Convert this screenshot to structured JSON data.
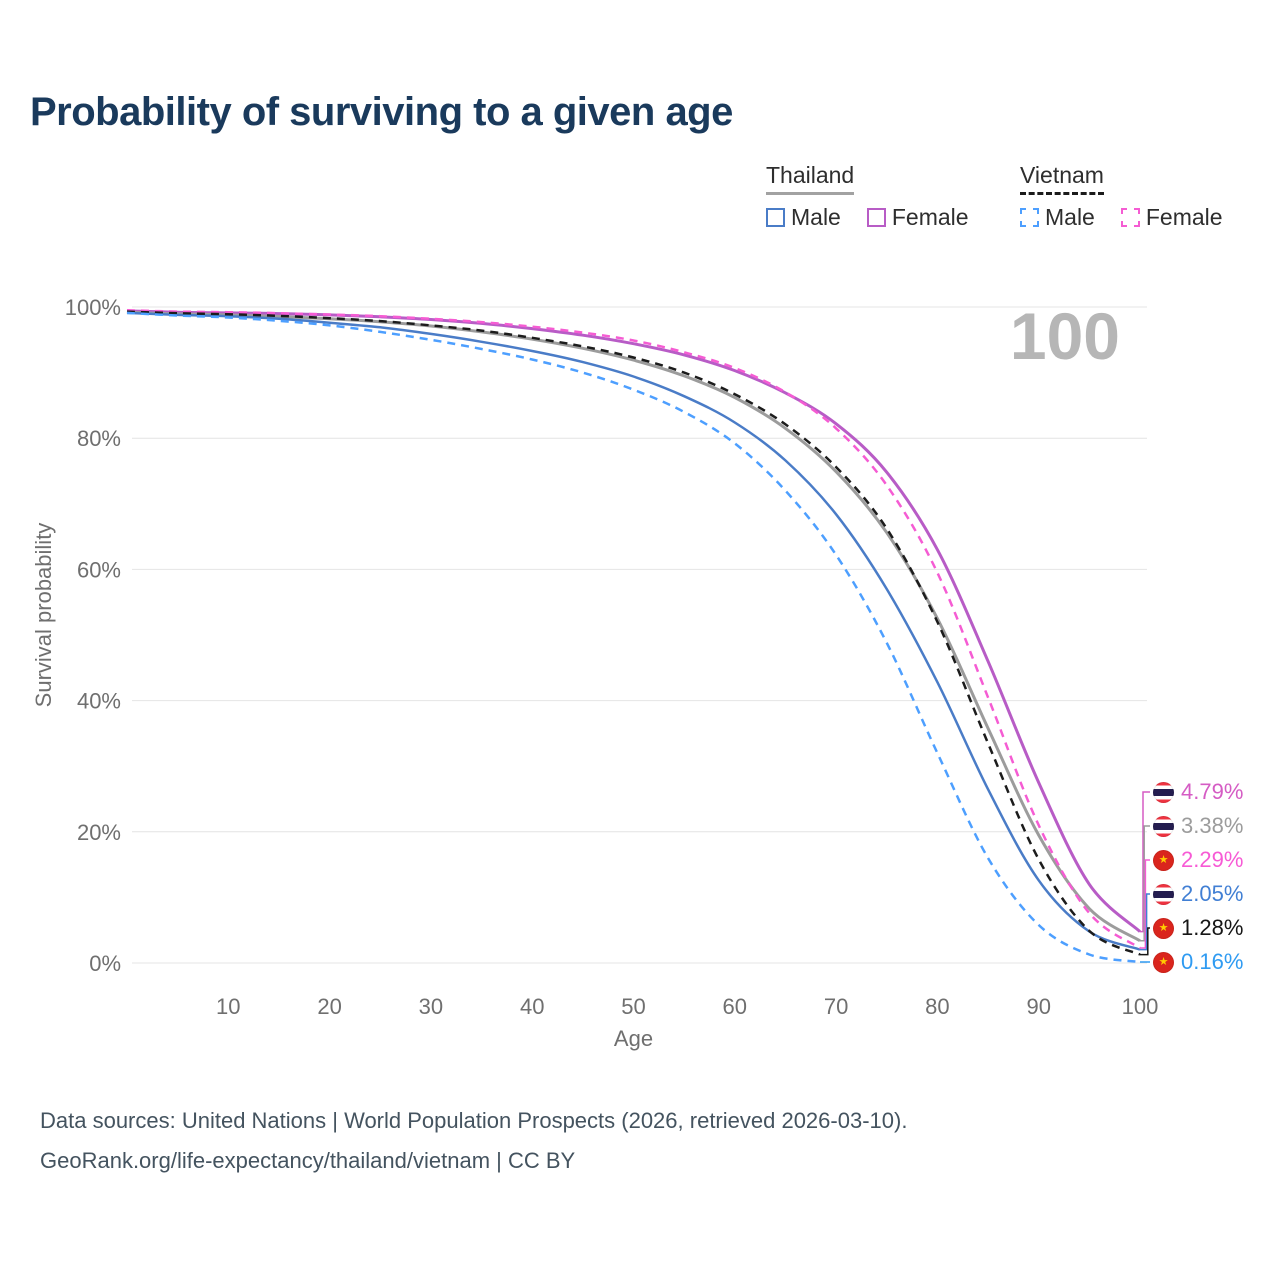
{
  "page": {
    "title": "Probability of surviving to a given age",
    "footer_line1": "Data sources: United Nations | World Population Prospects (2026, retrieved 2026-03-10).",
    "footer_line2": "GeoRank.org/life-expectancy/thailand/vietnam | CC BY"
  },
  "legend": {
    "groups": [
      {
        "label": "Thailand",
        "style": "solid",
        "rule_color": "#a2a2a2",
        "items": [
          {
            "label": "Male",
            "color": "#4a7cc7",
            "dashed": false
          },
          {
            "label": "Female",
            "color": "#b85cc6",
            "dashed": false
          }
        ]
      },
      {
        "label": "Vietnam",
        "style": "dashed",
        "rule_color": "#1b1b1b",
        "items": [
          {
            "label": "Male",
            "color": "#4d9fff",
            "dashed": true
          },
          {
            "label": "Female",
            "color": "#f55cd3",
            "dashed": true
          }
        ]
      }
    ]
  },
  "icons": {
    "thailand_flag": {
      "red": "#ef3340",
      "white": "#ffffff",
      "blue": "#241d4f"
    },
    "vietnam_flag": {
      "bg": "#da251d",
      "star_color": "#ffcd00",
      "glyph": "★"
    }
  },
  "chart_data": {
    "type": "line",
    "title": "Probability of surviving to a given age",
    "xlabel": "Age",
    "ylabel": "Survival probability",
    "xlim": [
      0,
      100
    ],
    "ylim": [
      0,
      100
    ],
    "grid": "horizontal",
    "hover_age_label": "100",
    "xticks": [
      {
        "v": 10,
        "label": "10"
      },
      {
        "v": 20,
        "label": "20"
      },
      {
        "v": 30,
        "label": "30"
      },
      {
        "v": 40,
        "label": "40"
      },
      {
        "v": 50,
        "label": "50"
      },
      {
        "v": 60,
        "label": "60"
      },
      {
        "v": 70,
        "label": "70"
      },
      {
        "v": 80,
        "label": "80"
      },
      {
        "v": 90,
        "label": "90"
      },
      {
        "v": 100,
        "label": "100"
      }
    ],
    "yticks": [
      {
        "v": 0,
        "label": "0%"
      },
      {
        "v": 20,
        "label": "20%"
      },
      {
        "v": 40,
        "label": "40%"
      },
      {
        "v": 60,
        "label": "60%"
      },
      {
        "v": 80,
        "label": "80%"
      },
      {
        "v": 100,
        "label": "100%"
      }
    ],
    "x": [
      0,
      5,
      10,
      15,
      20,
      25,
      30,
      35,
      40,
      45,
      50,
      55,
      60,
      65,
      70,
      75,
      80,
      85,
      90,
      95,
      100
    ],
    "series": [
      {
        "id": "thailand-female",
        "country": "Thailand",
        "sex": "Female",
        "color": "#b85cc6",
        "dashed": false,
        "width": 3,
        "values": [
          99.4,
          99.2,
          99.1,
          99.0,
          98.8,
          98.5,
          98.1,
          97.5,
          96.7,
          95.7,
          94.4,
          92.7,
          90.3,
          86.9,
          82.2,
          74.8,
          63.0,
          46.0,
          27.5,
          12.0,
          4.79
        ],
        "end_label": {
          "text": "4.79%",
          "color": "#d55cc4",
          "flag": "th"
        }
      },
      {
        "id": "thailand-both",
        "country": "Thailand",
        "sex": "Both",
        "color": "#9c9c9c",
        "dashed": false,
        "width": 3,
        "values": [
          99.2,
          98.95,
          98.8,
          98.55,
          98.2,
          97.75,
          97.1,
          96.2,
          95.1,
          93.7,
          91.9,
          89.5,
          86.2,
          81.5,
          74.9,
          65.6,
          52.5,
          35.8,
          19.5,
          8.3,
          3.38
        ],
        "end_label": {
          "text": "3.38%",
          "color": "#9c9c9c",
          "flag": "th"
        }
      },
      {
        "id": "vietnam-female",
        "country": "Vietnam",
        "sex": "Female",
        "color": "#f55cd3",
        "dashed": true,
        "width": 2.5,
        "values": [
          99.5,
          99.3,
          99.2,
          99.05,
          98.85,
          98.6,
          98.2,
          97.7,
          97.0,
          96.1,
          94.9,
          93.1,
          90.7,
          87.0,
          81.5,
          72.8,
          59.5,
          40.5,
          21.0,
          7.6,
          2.29
        ],
        "end_label": {
          "text": "2.29%",
          "color": "#f75ad5",
          "flag": "vn"
        }
      },
      {
        "id": "thailand-male",
        "country": "Thailand",
        "sex": "Male",
        "color": "#4a7cc7",
        "dashed": false,
        "width": 2.5,
        "values": [
          99.1,
          98.8,
          98.6,
          98.2,
          97.6,
          96.9,
          95.9,
          94.7,
          93.3,
          91.6,
          89.4,
          86.4,
          82.4,
          76.6,
          68.4,
          57.0,
          42.8,
          26.5,
          12.6,
          4.8,
          2.05
        ],
        "end_label": {
          "text": "2.05%",
          "color": "#417fd4",
          "flag": "th"
        }
      },
      {
        "id": "vietnam-both",
        "country": "Vietnam",
        "sex": "Both",
        "color": "#1c1c1c",
        "dashed": true,
        "width": 2.5,
        "values": [
          99.3,
          99.05,
          98.9,
          98.65,
          98.3,
          97.85,
          97.2,
          96.4,
          95.3,
          94.0,
          92.3,
          90.0,
          86.7,
          82.1,
          75.6,
          66.2,
          52.0,
          33.5,
          15.8,
          4.9,
          1.28
        ],
        "end_label": {
          "text": "1.28%",
          "color": "#161616",
          "flag": "vn"
        }
      },
      {
        "id": "vietnam-male",
        "country": "Vietnam",
        "sex": "Male",
        "color": "#4d9fff",
        "dashed": true,
        "width": 2.5,
        "values": [
          99.1,
          98.7,
          98.4,
          97.9,
          97.2,
          96.2,
          95.0,
          93.6,
          92.0,
          90.0,
          87.4,
          84.0,
          79.2,
          72.0,
          62.2,
          48.8,
          32.0,
          16.0,
          5.8,
          1.3,
          0.16
        ],
        "end_label": {
          "text": "0.16%",
          "color": "#2f9bf2",
          "flag": "vn"
        }
      }
    ]
  }
}
